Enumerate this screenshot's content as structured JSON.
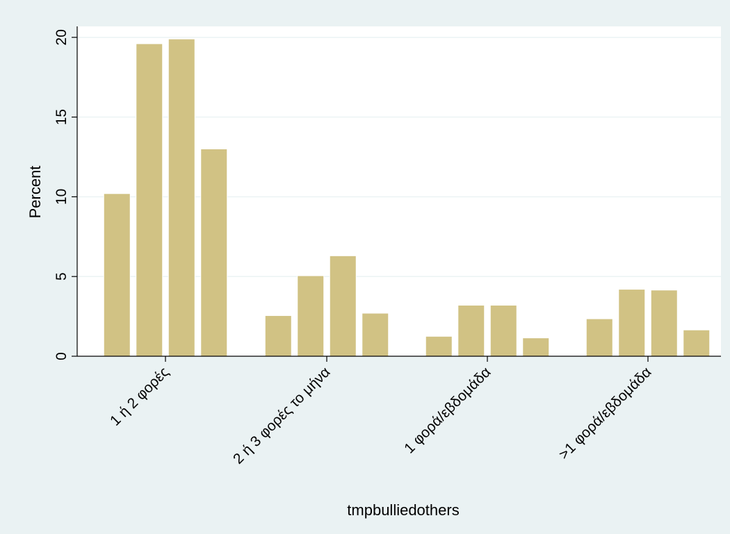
{
  "chart_data": {
    "type": "bar",
    "title": "",
    "xlabel": "tmpbulliedothers",
    "ylabel": "Percent",
    "ylim": [
      0,
      20.6
    ],
    "yticks": [
      0,
      5,
      10,
      15,
      20
    ],
    "ytick_labels": [
      "0",
      "5",
      "10",
      "15",
      "20"
    ],
    "grid": true,
    "legend": "none",
    "categories": [
      "1 ή 2 φορές",
      "2 ή 3 φορές το μήνα",
      "1 φορά/εβδομάδα",
      ">1 φορά/εβδομάδα"
    ],
    "series": [
      {
        "values": [
          10.2,
          2.55,
          1.25,
          2.35
        ]
      },
      {
        "values": [
          19.6,
          5.05,
          3.2,
          4.2
        ]
      },
      {
        "values": [
          19.9,
          6.3,
          3.2,
          4.15
        ]
      },
      {
        "values": [
          13.0,
          2.7,
          1.15,
          1.65
        ]
      }
    ]
  },
  "colors": {
    "outer_background": "#eaf2f3",
    "plot_background": "#ffffff",
    "bar_fill": "#d1c284",
    "bar_stroke": "#ffffff",
    "grid": "#eaf2f3",
    "axis": "#000000"
  }
}
